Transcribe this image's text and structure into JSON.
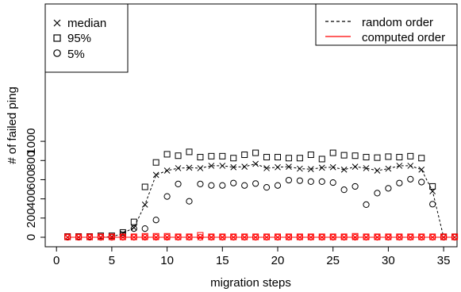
{
  "chart_data": {
    "type": "scatter",
    "title": "",
    "xlabel": "migration steps",
    "ylabel": "# of failed ping",
    "xlim": [
      0,
      37
    ],
    "ylim": [
      -40,
      1130
    ],
    "x_ticks": [
      0,
      5,
      10,
      15,
      20,
      25,
      30,
      35
    ],
    "y_ticks": [
      0,
      200,
      400,
      600,
      800,
      1000
    ],
    "grid": false,
    "legends": [
      {
        "placement": "top-left",
        "entries": [
          {
            "label": "median",
            "marker": "x"
          },
          {
            "label": "95%",
            "marker": "square"
          },
          {
            "label": "5%",
            "marker": "circle"
          }
        ]
      },
      {
        "placement": "top-right",
        "entries": [
          {
            "label": "random order",
            "line": "dashed",
            "color": "#000000"
          },
          {
            "label": "computed order",
            "line": "solid",
            "color": "#ff0000"
          }
        ]
      }
    ],
    "x": [
      1,
      2,
      3,
      4,
      5,
      6,
      7,
      8,
      9,
      10,
      11,
      12,
      13,
      14,
      15,
      16,
      17,
      18,
      19,
      20,
      21,
      22,
      23,
      24,
      25,
      26,
      27,
      28,
      29,
      30,
      31,
      32,
      33,
      34,
      35,
      36
    ],
    "series": [
      {
        "name": "random order",
        "color": "#000000",
        "median": [
          0,
          0,
          0,
          0,
          5,
          40,
          100,
          340,
          650,
          695,
          720,
          725,
          720,
          745,
          745,
          730,
          735,
          765,
          720,
          730,
          735,
          715,
          710,
          725,
          730,
          705,
          735,
          720,
          695,
          715,
          745,
          745,
          705,
          480,
          0,
          0
        ],
        "p95": [
          8,
          8,
          8,
          15,
          15,
          50,
          160,
          525,
          780,
          865,
          850,
          890,
          835,
          845,
          845,
          825,
          860,
          880,
          835,
          835,
          825,
          825,
          860,
          815,
          880,
          855,
          850,
          835,
          830,
          840,
          835,
          845,
          825,
          530,
          5,
          5
        ],
        "p5": [
          0,
          0,
          0,
          0,
          0,
          25,
          90,
          90,
          180,
          425,
          555,
          375,
          555,
          540,
          540,
          565,
          540,
          560,
          520,
          540,
          595,
          590,
          580,
          580,
          570,
          495,
          530,
          340,
          460,
          510,
          565,
          605,
          575,
          345,
          0,
          0
        ]
      },
      {
        "name": "computed order",
        "color": "#ff0000",
        "median": [
          0,
          0,
          0,
          0,
          0,
          0,
          0,
          0,
          0,
          0,
          0,
          0,
          0,
          0,
          0,
          0,
          0,
          0,
          0,
          0,
          0,
          0,
          0,
          0,
          0,
          0,
          0,
          0,
          0,
          0,
          0,
          0,
          0,
          0,
          0,
          0
        ],
        "p95": [
          5,
          5,
          5,
          5,
          5,
          5,
          5,
          10,
          10,
          10,
          5,
          5,
          20,
          5,
          5,
          5,
          5,
          5,
          5,
          5,
          5,
          5,
          5,
          5,
          5,
          5,
          10,
          5,
          5,
          5,
          5,
          5,
          5,
          5,
          5,
          5
        ],
        "p5": [
          0,
          0,
          0,
          0,
          0,
          0,
          0,
          0,
          0,
          0,
          0,
          0,
          0,
          0,
          0,
          0,
          0,
          0,
          0,
          0,
          0,
          0,
          0,
          0,
          0,
          0,
          0,
          0,
          0,
          0,
          0,
          0,
          0,
          0,
          0,
          0
        ]
      }
    ]
  }
}
